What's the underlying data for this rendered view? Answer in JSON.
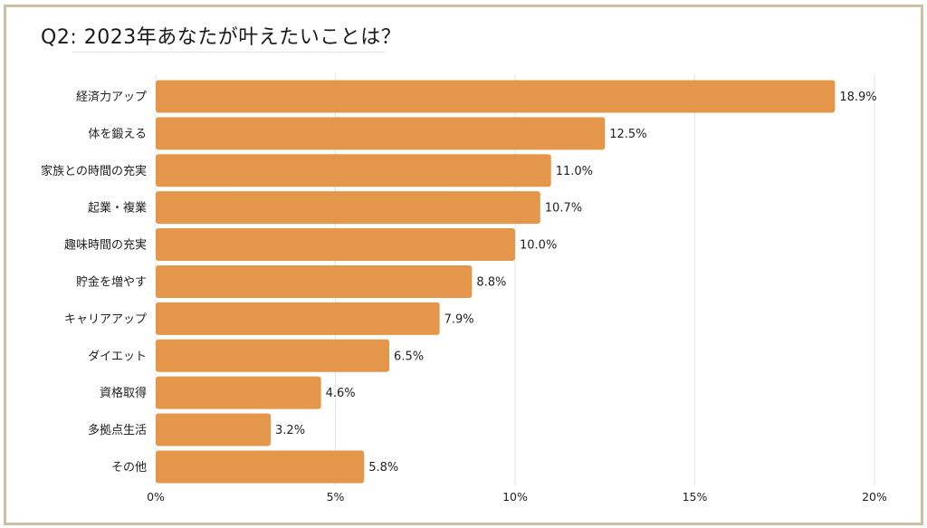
{
  "chart_data": {
    "type": "bar",
    "orientation": "horizontal",
    "title": "Q2: 2023年あなたが叶えたいことは？",
    "categories": [
      "経済力アップ",
      "体を鍛える",
      "家族との時間の充実",
      "起業・複業",
      "趣味時間の充実",
      "貯金を増やす",
      "キャリアアップ",
      "ダイエット",
      "資格取得",
      "多拠点生活",
      "その他"
    ],
    "values": [
      18.9,
      12.5,
      11.0,
      10.7,
      10.0,
      8.8,
      7.9,
      6.5,
      4.6,
      3.2,
      5.8
    ],
    "value_labels": [
      "18.9%",
      "12.5%",
      "11.0%",
      "10.7%",
      "10.0%",
      "8.8%",
      "7.9%",
      "6.5%",
      "4.6%",
      "3.2%",
      "5.8%"
    ],
    "xlim": [
      0,
      20
    ],
    "xticks": [
      0,
      5,
      10,
      15,
      20
    ],
    "xtick_labels": [
      "0%",
      "5%",
      "10%",
      "15%",
      "20%"
    ],
    "grid": true,
    "bar_color": "#e4964a",
    "grid_color": "#e6e6e6",
    "frame_color": "#cbbfa6"
  }
}
